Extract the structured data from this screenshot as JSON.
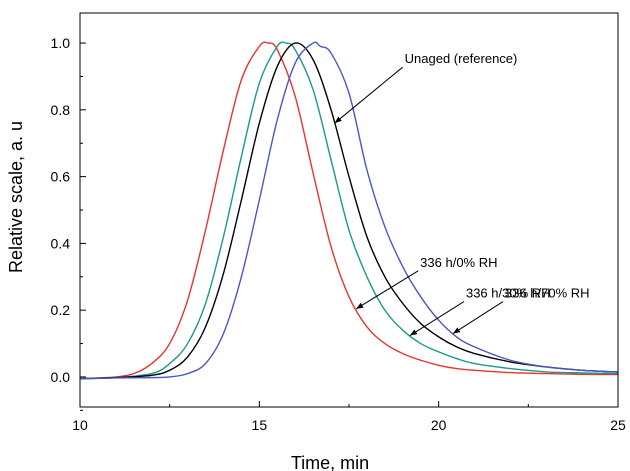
{
  "chart_data": {
    "type": "line",
    "title": "",
    "xlabel": "Time, min",
    "ylabel": "Relative scale, a. u",
    "xlim": [
      10,
      25
    ],
    "ylim": [
      -0.09,
      1.09
    ],
    "grid": false,
    "x_ticks": [
      "10",
      "15",
      "20",
      "25"
    ],
    "y_ticks": [
      "0.0",
      "0.2",
      "0.4",
      "0.6",
      "0.8",
      "1.0"
    ],
    "series": [
      {
        "name": "336 h/0% RH",
        "color": "#e8332c",
        "x": [
          10,
          10.5,
          11,
          11.5,
          12,
          12.5,
          13,
          13.5,
          14,
          14.5,
          15,
          15.25,
          15.5,
          16,
          16.5,
          17,
          17.5,
          18,
          18.5,
          19,
          19.5,
          20,
          20.5,
          21,
          22,
          23,
          24,
          25
        ],
        "y": [
          -0.005,
          -0.003,
          0.0,
          0.01,
          0.04,
          0.1,
          0.23,
          0.44,
          0.68,
          0.89,
          0.99,
          1.0,
          0.98,
          0.84,
          0.61,
          0.39,
          0.24,
          0.15,
          0.1,
          0.07,
          0.05,
          0.035,
          0.025,
          0.02,
          0.013,
          0.01,
          0.008,
          0.007
        ]
      },
      {
        "name": "336 h/30% RH",
        "color": "#1a9a8c",
        "x": [
          10,
          11,
          12,
          12.5,
          13,
          13.5,
          14,
          14.5,
          15,
          15.5,
          15.75,
          16,
          16.5,
          17,
          17.5,
          18,
          18.5,
          19,
          19.5,
          20,
          20.5,
          21,
          22,
          23,
          24,
          25
        ],
        "y": [
          -0.005,
          -0.002,
          0.01,
          0.04,
          0.1,
          0.22,
          0.42,
          0.66,
          0.88,
          0.99,
          1.0,
          0.98,
          0.86,
          0.65,
          0.44,
          0.3,
          0.2,
          0.14,
          0.1,
          0.075,
          0.055,
          0.04,
          0.025,
          0.015,
          0.012,
          0.01
        ]
      },
      {
        "name": "Unaged (reference)",
        "color": "#000000",
        "x": [
          10,
          11,
          12,
          12.5,
          13,
          13.5,
          14,
          14.5,
          15,
          15.5,
          16,
          16.5,
          17,
          17.5,
          18,
          18.5,
          19,
          19.5,
          20,
          20.5,
          21,
          22,
          23,
          24,
          25
        ],
        "y": [
          -0.005,
          -0.002,
          0.005,
          0.02,
          0.06,
          0.15,
          0.31,
          0.53,
          0.76,
          0.93,
          1.0,
          0.95,
          0.8,
          0.6,
          0.42,
          0.3,
          0.22,
          0.16,
          0.12,
          0.09,
          0.07,
          0.045,
          0.03,
          0.02,
          0.015
        ]
      },
      {
        "name": "336 h/70% RH",
        "color": "#4a56c8",
        "x": [
          10,
          11,
          12,
          12.5,
          13,
          13.5,
          14,
          14.5,
          15,
          15.5,
          16,
          16.5,
          16.7,
          17,
          17.5,
          18,
          18.5,
          19,
          19.5,
          20,
          20.5,
          21,
          22,
          23,
          24,
          25
        ],
        "y": [
          -0.005,
          -0.003,
          -0.002,
          0.0,
          0.01,
          0.04,
          0.13,
          0.3,
          0.53,
          0.77,
          0.94,
          1.0,
          0.99,
          0.97,
          0.85,
          0.62,
          0.45,
          0.33,
          0.24,
          0.17,
          0.12,
          0.09,
          0.05,
          0.03,
          0.02,
          0.015
        ]
      }
    ],
    "annotations": [
      {
        "text": "Unaged (reference)",
        "target_series": "Unaged (reference)",
        "x": 17.1,
        "y": 0.75
      },
      {
        "text": "336 h/0% RH",
        "target_series": "336 h/0% RH",
        "x": 17.7,
        "y": 0.34
      },
      {
        "text": "336 h/30% RH",
        "target_series": "336 h/30% RH",
        "x": 19.2,
        "y": 0.26
      },
      {
        "text": "336 h/70% RH",
        "target_series": "336 h/70% RH",
        "x": 20.4,
        "y": 0.19
      }
    ]
  }
}
